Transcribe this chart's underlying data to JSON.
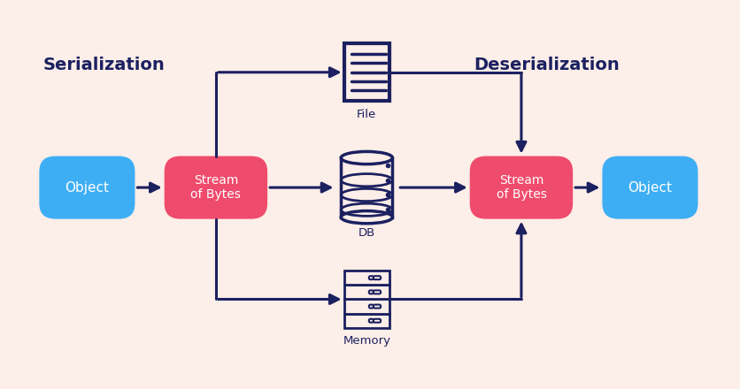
{
  "bg_color": "#fceee8",
  "dark_navy": "#1b2060",
  "blue_box": "#3eaef4",
  "red_box": "#ef4b6c",
  "white_text": "#ffffff",
  "arrow_color": "#1b2060",
  "title_serialization": "Serialization",
  "title_deserialization": "Deserialization",
  "label_object_left": "Object",
  "label_stream_left": "Stream\nof Bytes",
  "label_stream_right": "Stream\nof Bytes",
  "label_object_right": "Object",
  "label_file": "File",
  "label_db": "DB",
  "label_memory": "Memory",
  "figsize": [
    8.37,
    4.4
  ],
  "dpi": 100
}
